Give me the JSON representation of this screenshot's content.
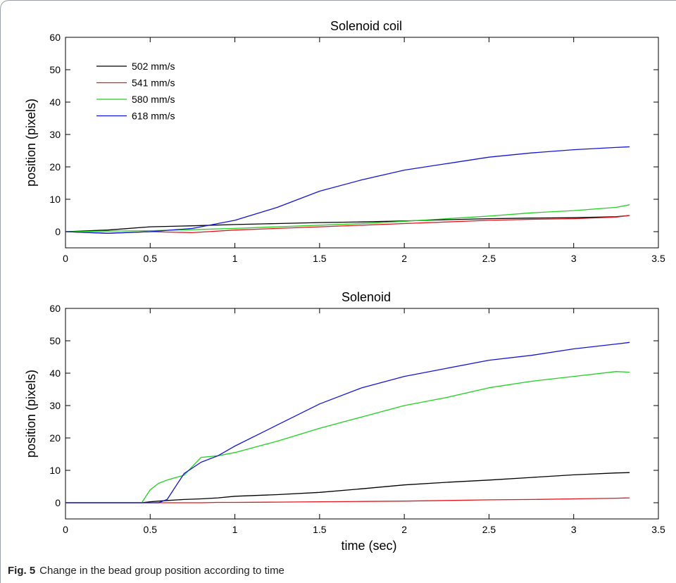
{
  "figure": {
    "caption_label": "Fig. 5",
    "caption_text": "Change in the bead group position according to time"
  },
  "legend_entries": [
    {
      "name": "502 mm/s",
      "color": "#000000"
    },
    {
      "name": "541 mm/s",
      "color": "#e8141c"
    },
    {
      "name": "580 mm/s",
      "color": "#1ed21e"
    },
    {
      "name": "618 mm/s",
      "color": "#1414dc"
    }
  ],
  "chart_data": [
    {
      "type": "line",
      "title": "Solenoid coil",
      "xlabel": "",
      "ylabel": "position (pixels)",
      "xlim": [
        0,
        3.5
      ],
      "ylim": [
        -5,
        60
      ],
      "xticks": [
        0,
        0.5,
        1,
        1.5,
        2,
        2.5,
        3,
        3.5
      ],
      "xtick_labels": [
        "0",
        "0.5",
        "1",
        "1.5",
        "2",
        "2.5",
        "3",
        "3.5"
      ],
      "yticks": [
        0,
        10,
        20,
        30,
        40,
        50,
        60
      ],
      "ytick_labels": [
        "0",
        "10",
        "20",
        "30",
        "40",
        "50",
        "60"
      ],
      "grid": false,
      "legend_position": "top-left",
      "x": [
        0,
        0.25,
        0.5,
        0.75,
        1.0,
        1.25,
        1.5,
        1.75,
        2.0,
        2.25,
        2.5,
        2.75,
        3.0,
        3.25,
        3.33
      ],
      "series": [
        {
          "name": "502 mm/s",
          "color": "#000000",
          "values": [
            0,
            0.5,
            1.5,
            1.8,
            2.2,
            2.5,
            2.8,
            3.0,
            3.3,
            3.7,
            4.0,
            4.2,
            4.3,
            4.6,
            5.0
          ]
        },
        {
          "name": "541 mm/s",
          "color": "#e8141c",
          "values": [
            0,
            -0.5,
            0,
            -0.3,
            0.5,
            1.0,
            1.5,
            2.0,
            2.5,
            3.0,
            3.5,
            3.8,
            4.0,
            4.5,
            5.0
          ]
        },
        {
          "name": "580 mm/s",
          "color": "#1ed21e",
          "values": [
            0,
            0.2,
            0.3,
            0.6,
            1.0,
            1.5,
            2.0,
            2.5,
            3.2,
            4.0,
            4.8,
            5.8,
            6.5,
            7.5,
            8.3
          ]
        },
        {
          "name": "618 mm/s",
          "color": "#1414dc",
          "values": [
            0,
            -0.5,
            0,
            1.0,
            3.5,
            7.5,
            12.5,
            16.0,
            19.0,
            21.0,
            23.0,
            24.3,
            25.3,
            26.0,
            26.2
          ]
        }
      ]
    },
    {
      "type": "line",
      "title": "Solenoid",
      "xlabel": "time (sec)",
      "ylabel": "position (pixels)",
      "xlim": [
        0,
        3.5
      ],
      "ylim": [
        -5,
        60
      ],
      "xticks": [
        0,
        0.5,
        1,
        1.5,
        2,
        2.5,
        3,
        3.5
      ],
      "xtick_labels": [
        "0",
        "0.5",
        "1",
        "1.5",
        "2",
        "2.5",
        "3",
        "3.5"
      ],
      "yticks": [
        0,
        10,
        20,
        30,
        40,
        50,
        60
      ],
      "ytick_labels": [
        "0",
        "10",
        "20",
        "30",
        "40",
        "50",
        "60"
      ],
      "grid": false,
      "legend_position": "none",
      "x": [
        0,
        0.25,
        0.45,
        0.5,
        0.55,
        0.6,
        0.7,
        0.8,
        0.9,
        1.0,
        1.25,
        1.5,
        1.75,
        2.0,
        2.25,
        2.5,
        2.75,
        3.0,
        3.25,
        3.33
      ],
      "series": [
        {
          "name": "502 mm/s",
          "color": "#000000",
          "values": [
            0,
            0,
            0,
            0.3,
            0.5,
            0.7,
            1.0,
            1.2,
            1.5,
            2.0,
            2.5,
            3.2,
            4.3,
            5.5,
            6.3,
            7.0,
            7.8,
            8.6,
            9.2,
            9.3
          ]
        },
        {
          "name": "541 mm/s",
          "color": "#e8141c",
          "values": [
            0,
            0,
            0,
            0,
            0,
            0,
            0,
            0,
            0.1,
            0.1,
            0.2,
            0.3,
            0.4,
            0.5,
            0.7,
            0.9,
            1.0,
            1.2,
            1.4,
            1.5
          ]
        },
        {
          "name": "580 mm/s",
          "color": "#1ed21e",
          "values": [
            0,
            0,
            0,
            4.0,
            6.0,
            7.0,
            8.5,
            14.0,
            14.5,
            15.5,
            19.0,
            23.0,
            26.5,
            30.0,
            32.5,
            35.5,
            37.5,
            39.0,
            40.5,
            40.3
          ]
        },
        {
          "name": "618 mm/s",
          "color": "#1414dc",
          "values": [
            0,
            0,
            0,
            0,
            0,
            1.0,
            9.0,
            12.5,
            14.5,
            17.5,
            24.0,
            30.5,
            35.5,
            39.0,
            41.5,
            44.0,
            45.5,
            47.5,
            49.0,
            49.5
          ]
        }
      ]
    }
  ]
}
